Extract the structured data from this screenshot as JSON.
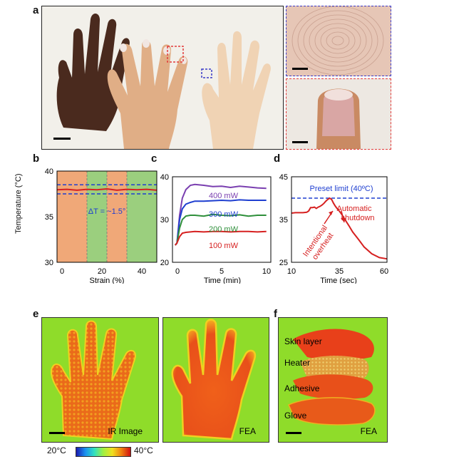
{
  "panels": {
    "a": "a",
    "b": "b",
    "c": "c",
    "d": "d",
    "e": "e",
    "f": "f"
  },
  "colors": {
    "photo_bg": "#f1efe9",
    "dark_hand": "#4a2a1e",
    "skin": "#e1b089",
    "translucent_hand": "#f0cfae",
    "blue_box": "#3a3ac8",
    "red_box": "#e23a3a",
    "ir_bg": "#8fdc2a",
    "ir_hot": "#e85a12"
  },
  "chart_b": {
    "ylabel": "Temperature (°C)",
    "xlabel": "Strain (%)",
    "annotation": "ΔT = ~1.5°",
    "yticks": [
      "30",
      "35",
      "40"
    ],
    "xticks": [
      "0",
      "20",
      "40"
    ]
  },
  "chart_c": {
    "xlabel": "Time (min)",
    "yticks": [
      "20",
      "30",
      "40"
    ],
    "xticks": [
      "0",
      "5",
      "10"
    ],
    "labels": [
      "400 mW",
      "300 mW",
      "200 mW",
      "100 mW"
    ]
  },
  "chart_d": {
    "xlabel": "Time (sec)",
    "yticks": [
      "25",
      "35",
      "45"
    ],
    "xticks": [
      "10",
      "35",
      "60"
    ],
    "preset": "Preset limit (40ºC)",
    "overheat": [
      "Intentional",
      "overheat"
    ],
    "shutdown": [
      "Automatic",
      "shutdown"
    ]
  },
  "panel_e": {
    "left_label": "IR Image",
    "right_label": "FEA",
    "colorbar_min": "20°C",
    "colorbar_max": "40°C"
  },
  "panel_f": {
    "layers": [
      "Skin layer",
      "Heater",
      "Adhesive",
      "Glove"
    ],
    "label": "FEA"
  },
  "chart_data": [
    {
      "type": "line",
      "title": "",
      "xlabel": "Strain (%)",
      "ylabel": "Temperature (°C)",
      "xlim": [
        -5,
        45
      ],
      "ylim": [
        30,
        40
      ],
      "bands": [
        {
          "from": -5,
          "to": 10,
          "color": "#f0a878"
        },
        {
          "from": 10,
          "to": 20,
          "color": "#9bcf7e"
        },
        {
          "from": 20,
          "to": 30,
          "color": "#f0a878"
        },
        {
          "from": 30,
          "to": 45,
          "color": "#9bcf7e"
        }
      ],
      "series": [
        {
          "color": "#d62020",
          "x": [
            -5,
            0,
            5,
            10,
            15,
            20,
            25,
            30,
            35,
            40,
            45
          ],
          "values": [
            37.95,
            38.0,
            37.9,
            38.0,
            37.95,
            38.05,
            37.9,
            38.0,
            37.95,
            38.0,
            37.9
          ]
        }
      ],
      "bounds": [
        38.5,
        37.5
      ],
      "grid": false
    },
    {
      "type": "line",
      "title": "",
      "xlabel": "Time (min)",
      "ylabel": "",
      "xlim": [
        -0.5,
        10.5
      ],
      "ylim": [
        20,
        40
      ],
      "series": [
        {
          "name": "400 mW",
          "color": "#7a3fb0",
          "x": [
            -0.2,
            0,
            0.3,
            0.6,
            1,
            1.5,
            2,
            3,
            4,
            5,
            6,
            7,
            8,
            9,
            10
          ],
          "values": [
            24,
            24.5,
            31,
            35,
            37,
            38,
            38.2,
            38,
            37.7,
            37.8,
            37.5,
            37.8,
            37.6,
            37.4,
            37.3
          ]
        },
        {
          "name": "300 mW",
          "color": "#1f3fd0",
          "x": [
            -0.2,
            0,
            0.3,
            0.6,
            1,
            1.5,
            2,
            3,
            4,
            5,
            6,
            7,
            8,
            9,
            10
          ],
          "values": [
            24,
            24.5,
            30,
            32.5,
            33.6,
            34,
            34.3,
            34.3,
            34.4,
            34.5,
            34.4,
            34.6,
            34.5,
            34.5,
            34.5
          ]
        },
        {
          "name": "200 mW",
          "color": "#2e8f3a",
          "x": [
            -0.2,
            0,
            0.3,
            0.6,
            1,
            1.5,
            2,
            3,
            4,
            5,
            6,
            7,
            8,
            9,
            10
          ],
          "values": [
            24,
            24.5,
            28,
            30,
            30.8,
            31,
            31,
            30.8,
            31.2,
            31,
            30.9,
            31.1,
            30.8,
            31,
            31
          ]
        },
        {
          "name": "100 mW",
          "color": "#d62020",
          "x": [
            -0.2,
            0,
            0.3,
            0.6,
            1,
            1.5,
            2,
            3,
            4,
            5,
            6,
            7,
            8,
            9,
            10
          ],
          "values": [
            24,
            24.5,
            26,
            26.8,
            27,
            27.1,
            27.2,
            27.1,
            27.2,
            27.2,
            27.1,
            27.2,
            27.2,
            27.1,
            27.2
          ]
        }
      ],
      "grid": false
    },
    {
      "type": "line",
      "title": "",
      "xlabel": "Time (sec)",
      "ylabel": "",
      "xlim": [
        10,
        60
      ],
      "ylim": [
        25,
        45
      ],
      "threshold": 40,
      "series": [
        {
          "color": "#d62020",
          "x": [
            10,
            12,
            16,
            18,
            19,
            20,
            21,
            22,
            23,
            24,
            25,
            26,
            27,
            28,
            29,
            30,
            31,
            32,
            33,
            34,
            35,
            36,
            38,
            40,
            42,
            45,
            48,
            52,
            56,
            60
          ],
          "values": [
            36.5,
            36.6,
            36.6,
            36.7,
            37,
            37.8,
            37.8,
            37.9,
            37.6,
            37.9,
            38.1,
            38.4,
            38.8,
            39.3,
            39.7,
            40,
            39.7,
            38.8,
            38.1,
            37.5,
            37,
            36.4,
            35,
            33.6,
            32.1,
            30.4,
            28.6,
            27,
            26.1,
            25.8
          ]
        }
      ],
      "grid": false
    }
  ]
}
